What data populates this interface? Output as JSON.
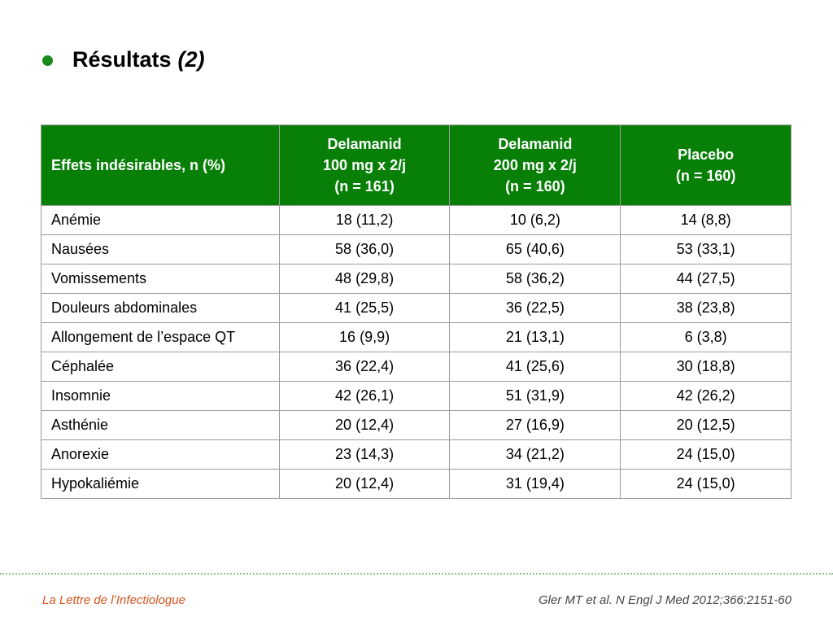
{
  "slide": {
    "title": "Résultats",
    "title_suffix": "(2)",
    "accent_color": "#088008"
  },
  "table": {
    "headers": [
      {
        "lines": [
          "Effets indésirables, n (%)"
        ]
      },
      {
        "lines": [
          "Delamanid",
          "100 mg x 2/j",
          "(n = 161)"
        ]
      },
      {
        "lines": [
          "Delamanid",
          "200 mg x 2/j",
          "(n = 160)"
        ]
      },
      {
        "lines": [
          "Placebo",
          "(n = 160)"
        ]
      }
    ],
    "rows": [
      [
        "Anémie",
        "18 (11,2)",
        "10 (6,2)",
        "14 (8,8)"
      ],
      [
        "Nausées",
        "58 (36,0)",
        "65 (40,6)",
        "53 (33,1)"
      ],
      [
        "Vomissements",
        "48 (29,8)",
        "58 (36,2)",
        "44 (27,5)"
      ],
      [
        "Douleurs abdominales",
        "41 (25,5)",
        "36 (22,5)",
        "38 (23,8)"
      ],
      [
        "Allongement de l’espace QT",
        "16 (9,9)",
        "21 (13,1)",
        "6 (3,8)"
      ],
      [
        "Céphalée",
        "36 (22,4)",
        "41 (25,6)",
        "30 (18,8)"
      ],
      [
        "Insomnie",
        "42 (26,1)",
        "51 (31,9)",
        "42 (26,2)"
      ],
      [
        "Asthénie",
        "20 (12,4)",
        "27 (16,9)",
        "20 (12,5)"
      ],
      [
        "Anorexie",
        "23 (14,3)",
        "34 (21,2)",
        "24 (15,0)"
      ],
      [
        "Hypokaliémie",
        "20 (12,4)",
        "31 (19,4)",
        "24 (15,0)"
      ]
    ]
  },
  "footer": {
    "journal": "La Lettre de l’Infectiologue",
    "reference": "Gler MT et al. N Engl J Med 2012;366:2151-60"
  }
}
